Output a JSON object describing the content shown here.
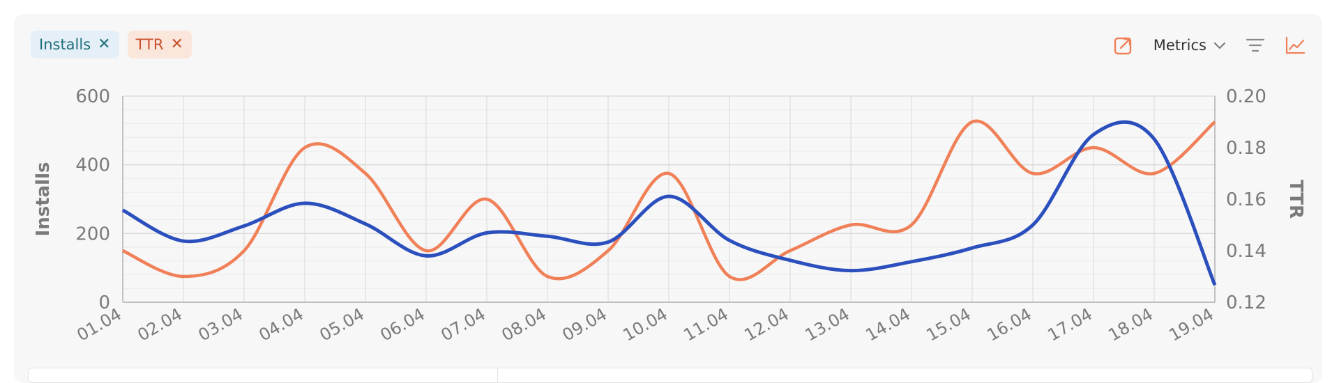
{
  "filters": [
    {
      "label": "Installs",
      "close": "✕"
    },
    {
      "label": "TTR",
      "close": "✕"
    }
  ],
  "toolbar": {
    "metrics_label": "Metrics",
    "icons": [
      "export-icon",
      "chevron-down-icon",
      "filter-icon",
      "line-chart-icon"
    ]
  },
  "colors": {
    "installs": "#2b4fbd",
    "ttr": "#f08058",
    "grid": "#d8d8d8",
    "axis_text": "#7a7a7a"
  },
  "chart_data": {
    "type": "line",
    "x": [
      "01.04",
      "02.04",
      "03.04",
      "04.04",
      "05.04",
      "06.04",
      "07.04",
      "08.04",
      "09.04",
      "10.04",
      "11.04",
      "12.04",
      "13.04",
      "14.04",
      "15.04",
      "16.04",
      "17.04",
      "18.04",
      "19.04"
    ],
    "series": [
      {
        "name": "Installs",
        "axis": "left",
        "values": [
          268,
          178,
          222,
          288,
          228,
          135,
          202,
          192,
          175,
          308,
          180,
          122,
          92,
          118,
          158,
          225,
          488,
          475,
          50
        ]
      },
      {
        "name": "TTR",
        "axis": "right",
        "values": [
          0.14,
          0.13,
          0.14,
          0.18,
          0.17,
          0.14,
          0.16,
          0.13,
          0.14,
          0.17,
          0.13,
          0.14,
          0.15,
          0.15,
          0.19,
          0.17,
          0.18,
          0.17,
          0.19
        ]
      }
    ],
    "ylabel_left": "Installs",
    "ylabel_right": "TTR",
    "ylim_left": [
      0,
      600
    ],
    "yticks_left": [
      "0",
      "200",
      "400",
      "600"
    ],
    "ylim_right": [
      0.12,
      0.2
    ],
    "yticks_right": [
      "0.12",
      "0.14",
      "0.16",
      "0.18",
      "0.20"
    ],
    "grid": true
  }
}
